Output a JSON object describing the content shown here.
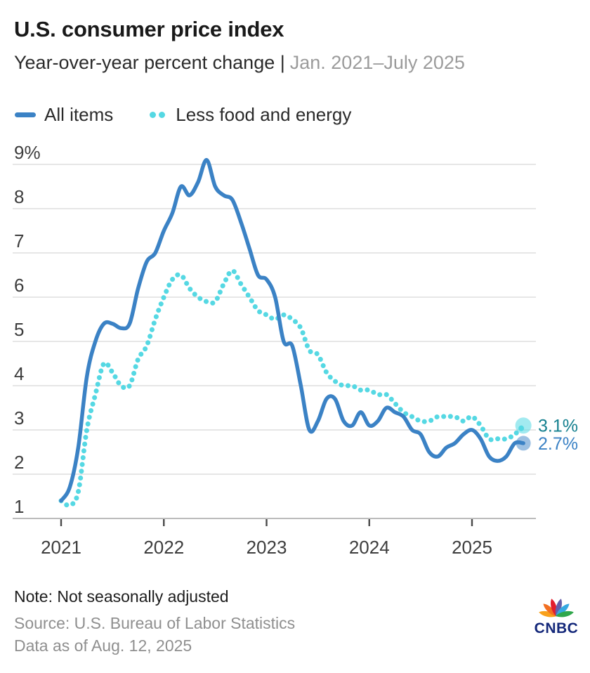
{
  "header": {
    "title": "U.S. consumer price index",
    "subtitle_primary": "Year-over-year percent change |",
    "subtitle_secondary": "Jan. 2021–July 2025"
  },
  "footer": {
    "note": "Note: Not seasonally adjusted",
    "source": "Source: U.S. Bureau of Labor Statistics",
    "data_as_of": "Data as of Aug. 12, 2025",
    "logo_text": "CNBC"
  },
  "colors": {
    "all_items_blue": "#3B82C5",
    "core_cyan": "#55D8E3",
    "teal_label": "#15808F",
    "grid": "#D8D8D8",
    "baseline": "#A6A6A6",
    "axis_text": "#3D3D3D"
  },
  "chart_data": {
    "type": "line",
    "title": "U.S. consumer price index",
    "subtitle": "Year-over-year percent change | Jan. 2021–July 2025",
    "x_start": "Jan 2021",
    "x_end": "July 2025",
    "x_axis": {
      "ticks": [
        "2021",
        "2022",
        "2023",
        "2024",
        "2025"
      ]
    },
    "y_axis": {
      "min": 1,
      "max": 9,
      "ticks": [
        "9%",
        "8",
        "7",
        "6",
        "5",
        "4",
        "3",
        "2",
        "1"
      ],
      "tick_values": [
        9,
        8,
        7,
        6,
        5,
        4,
        3,
        2,
        1
      ]
    },
    "grid": true,
    "legend_position": "top-left",
    "series": [
      {
        "name": "Less food and energy",
        "style": "dotted",
        "color": "#55D8E3",
        "end_label": "3.1%",
        "end_label_color": "#15808F",
        "values": [
          1.4,
          1.3,
          1.6,
          3.0,
          3.8,
          4.5,
          4.3,
          4.0,
          4.0,
          4.6,
          4.9,
          5.5,
          6.0,
          6.4,
          6.5,
          6.2,
          6.0,
          5.9,
          5.9,
          6.3,
          6.6,
          6.3,
          6.0,
          5.7,
          5.6,
          5.5,
          5.6,
          5.5,
          5.3,
          4.8,
          4.7,
          4.3,
          4.1,
          4.0,
          4.0,
          3.9,
          3.9,
          3.8,
          3.8,
          3.6,
          3.4,
          3.3,
          3.2,
          3.2,
          3.3,
          3.3,
          3.3,
          3.2,
          3.3,
          3.1,
          2.8,
          2.8,
          2.8,
          2.9,
          3.1
        ]
      },
      {
        "name": "All items",
        "style": "solid",
        "color": "#3B82C5",
        "end_label": "2.7%",
        "end_label_color": "#3B82C5",
        "values": [
          1.4,
          1.7,
          2.6,
          4.2,
          5.0,
          5.4,
          5.4,
          5.3,
          5.4,
          6.2,
          6.8,
          7.0,
          7.5,
          7.9,
          8.5,
          8.3,
          8.6,
          9.1,
          8.5,
          8.3,
          8.2,
          7.7,
          7.1,
          6.5,
          6.4,
          6.0,
          5.0,
          4.9,
          4.0,
          3.0,
          3.2,
          3.7,
          3.7,
          3.2,
          3.1,
          3.4,
          3.1,
          3.2,
          3.5,
          3.4,
          3.3,
          3.0,
          2.9,
          2.5,
          2.4,
          2.6,
          2.7,
          2.9,
          3.0,
          2.8,
          2.4,
          2.3,
          2.4,
          2.7,
          2.7
        ]
      }
    ]
  }
}
